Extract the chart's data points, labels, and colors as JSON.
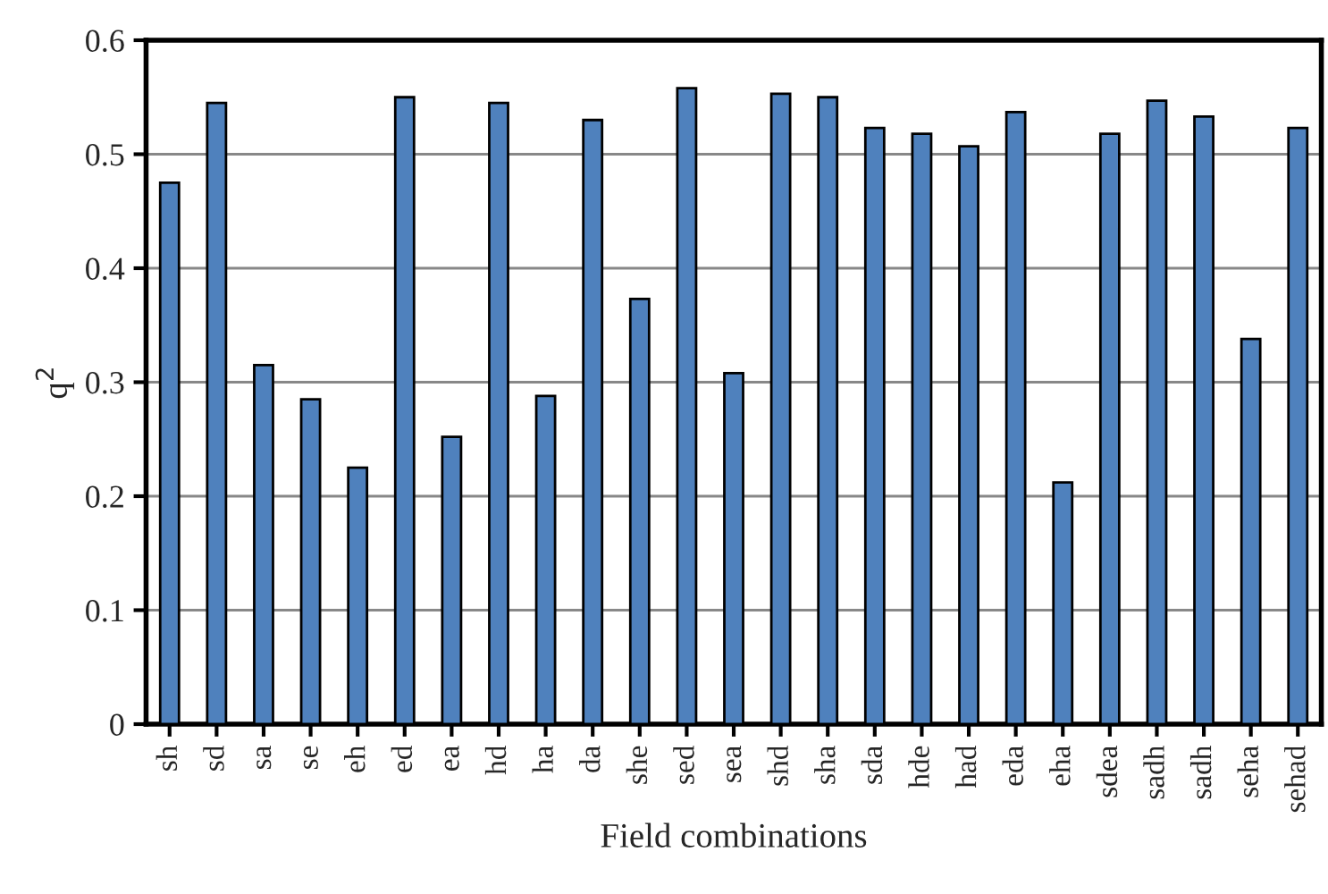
{
  "chart_data": {
    "type": "bar",
    "xlabel": "Field combinations",
    "ylabel": "q$^{2}$",
    "categories": [
      "sh",
      "sd",
      "sa",
      "se",
      "eh",
      "ed",
      "ea",
      "hd",
      "ha",
      "da",
      "she",
      "sed",
      "sea",
      "shd",
      "sha",
      "sda",
      "hde",
      "had",
      "eda",
      "eha",
      "sdea",
      "sadh",
      "sadh",
      "seha",
      "sehad"
    ],
    "values": [
      0.475,
      0.545,
      0.315,
      0.285,
      0.225,
      0.55,
      0.252,
      0.545,
      0.288,
      0.53,
      0.373,
      0.558,
      0.308,
      0.553,
      0.55,
      0.523,
      0.518,
      0.507,
      0.537,
      0.212,
      0.518,
      0.547,
      0.533,
      0.338,
      0.523
    ],
    "color": "#4f81bd",
    "ylim": [
      0,
      0.6
    ],
    "yticks": [
      {
        "value": 0,
        "label": "0"
      },
      0.1,
      0.2,
      0.3,
      0.4,
      0.5,
      0.6
    ],
    "grid": "y",
    "legend": false
  }
}
